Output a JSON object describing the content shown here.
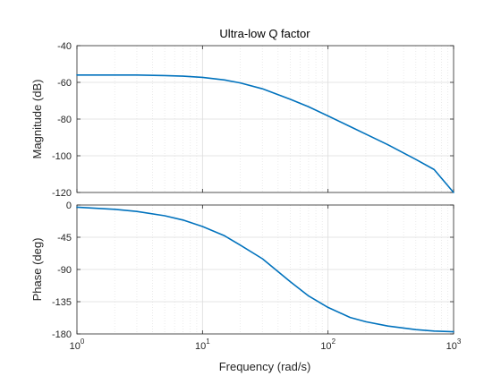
{
  "chart_data": {
    "type": "line",
    "title": "Ultra-low Q factor",
    "xlabel": "Frequency  (rad/s)",
    "x_scale": "log",
    "xlim": [
      1,
      1000
    ],
    "x_ticks": [
      {
        "value": 1,
        "base": "10",
        "exp": "0"
      },
      {
        "value": 10,
        "base": "10",
        "exp": "1"
      },
      {
        "value": 100,
        "base": "10",
        "exp": "2"
      },
      {
        "value": 1000,
        "base": "10",
        "exp": "3"
      }
    ],
    "grid": true,
    "color": "#0072BD",
    "panels": [
      {
        "name": "magnitude",
        "ylabel": "Magnitude (dB)",
        "ylim": [
          -120,
          -40
        ],
        "yticks": [
          -40,
          -60,
          -80,
          -100,
          -120
        ],
        "ytick_labels": [
          "-40",
          "-60",
          "-80",
          "-100",
          "-120"
        ],
        "series": [
          {
            "x": [
              1,
              2,
              3,
              5,
              7,
              10,
              15,
              20,
              30,
              50,
              70,
              100,
              150,
              200,
              300,
              500,
              700,
              1000
            ],
            "y": [
              -56,
              -56,
              -56,
              -56.3,
              -56.6,
              -57.3,
              -58.7,
              -60.3,
              -63.5,
              -69.2,
              -73.3,
              -78.3,
              -84.1,
              -88.2,
              -94.0,
              -102.0,
              -107.5,
              -120
            ]
          }
        ]
      },
      {
        "name": "phase",
        "ylabel": "Phase (deg)",
        "ylim": [
          -180,
          0
        ],
        "yticks": [
          0,
          -45,
          -90,
          -135,
          -180
        ],
        "ytick_labels": [
          "0",
          "-45",
          "-90",
          "-135",
          "-180"
        ],
        "series": [
          {
            "x": [
              1,
              2,
              3,
              5,
              7,
              10,
              15,
              20,
              30,
              50,
              70,
              100,
              150,
              200,
              300,
              500,
              700,
              1000
            ],
            "y": [
              -3,
              -6,
              -9,
              -15,
              -21,
              -30,
              -43,
              -56,
              -75,
              -107,
              -127,
              -143,
              -157,
              -163,
              -169,
              -174,
              -176,
              -177
            ]
          }
        ]
      }
    ]
  }
}
